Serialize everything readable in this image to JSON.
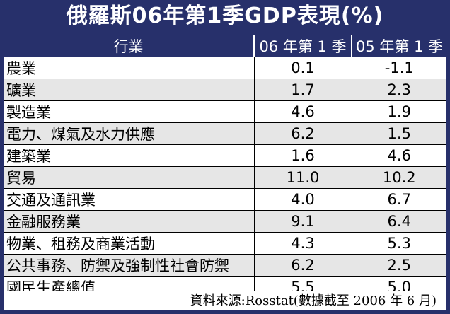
{
  "title": "俄羅斯06年第1季GDP表現(%)",
  "chart_data": {
    "type": "table",
    "title": "俄羅斯06年第1季GDP表現(%)",
    "columns": [
      "行業",
      "06 年第 1 季",
      "05 年第 1 季"
    ],
    "rows": [
      {
        "industry": "農業",
        "q1_2006": "0.1",
        "q1_2005": "-1.1"
      },
      {
        "industry": "礦業",
        "q1_2006": "1.7",
        "q1_2005": "2.3"
      },
      {
        "industry": "製造業",
        "q1_2006": "4.6",
        "q1_2005": "1.9"
      },
      {
        "industry": "電力、煤氣及水力供應",
        "q1_2006": "6.2",
        "q1_2005": "1.5"
      },
      {
        "industry": "建築業",
        "q1_2006": "1.6",
        "q1_2005": "4.6"
      },
      {
        "industry": "貿易",
        "q1_2006": "11.0",
        "q1_2005": "10.2"
      },
      {
        "industry": "交通及通訊業",
        "q1_2006": "4.0",
        "q1_2005": "6.7"
      },
      {
        "industry": "金融服務業",
        "q1_2006": "9.1",
        "q1_2005": "6.4"
      },
      {
        "industry": "物業、租務及商業活動",
        "q1_2006": "4.3",
        "q1_2005": "5.3"
      },
      {
        "industry": "公共事務、防禦及強制性社會防禦",
        "q1_2006": "6.2",
        "q1_2005": "2.5"
      },
      {
        "industry": "國民生產總值",
        "q1_2006": "5.5",
        "q1_2005": "5.0"
      }
    ],
    "source": "資料來源:Rosstat(數據截至 2006 年 6 月)"
  },
  "colors": {
    "frame": "#27306b",
    "header_text": "#ffffff",
    "alt_row": "#e6e6e6"
  }
}
